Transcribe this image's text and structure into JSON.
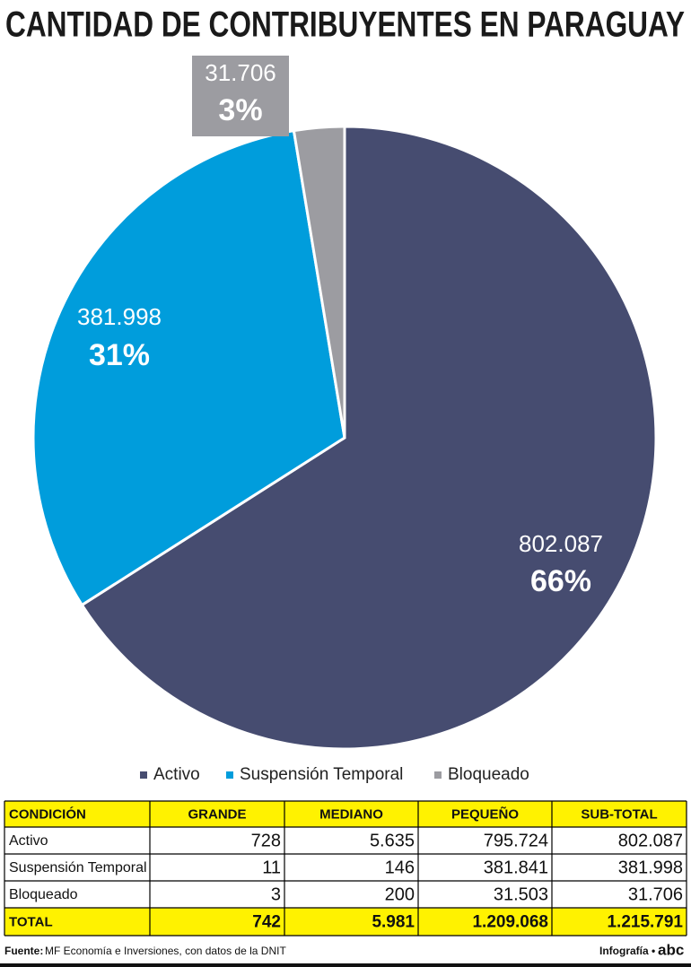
{
  "chart_data": {
    "type": "pie",
    "title": "CANTIDAD DE CONTRIBUYENTES EN PARAGUAY",
    "categories": [
      "Activo",
      "Suspensión Temporal",
      "Bloqueado"
    ],
    "values": [
      802087,
      381998,
      31706
    ],
    "value_labels": [
      "802.087",
      "381.998",
      "31.706"
    ],
    "percents": [
      66,
      31,
      3
    ],
    "percent_labels": [
      "66%",
      "31%",
      "3%"
    ],
    "colors": [
      "#464c70",
      "#009ddc",
      "#9c9ca1"
    ],
    "legend": "bottom"
  },
  "table": {
    "header": [
      "CONDICIÓN",
      "GRANDE",
      "MEDIANO",
      "PEQUEÑO",
      "SUB-TOTAL"
    ],
    "rows": [
      [
        "Activo",
        "728",
        "5.635",
        "795.724",
        "802.087"
      ],
      [
        "Suspensión Temporal",
        "11",
        "146",
        "381.841",
        "381.998"
      ],
      [
        "Bloqueado",
        "3",
        "200",
        "31.503",
        "31.706"
      ]
    ],
    "total": [
      "TOTAL",
      "742",
      "5.981",
      "1.209.068",
      "1.215.791"
    ]
  },
  "footer": {
    "source_label": "Fuente:",
    "source": "MF Economía e Inversiones, con datos de la DNIT",
    "credit": "Infografía •",
    "logo": "abc"
  }
}
